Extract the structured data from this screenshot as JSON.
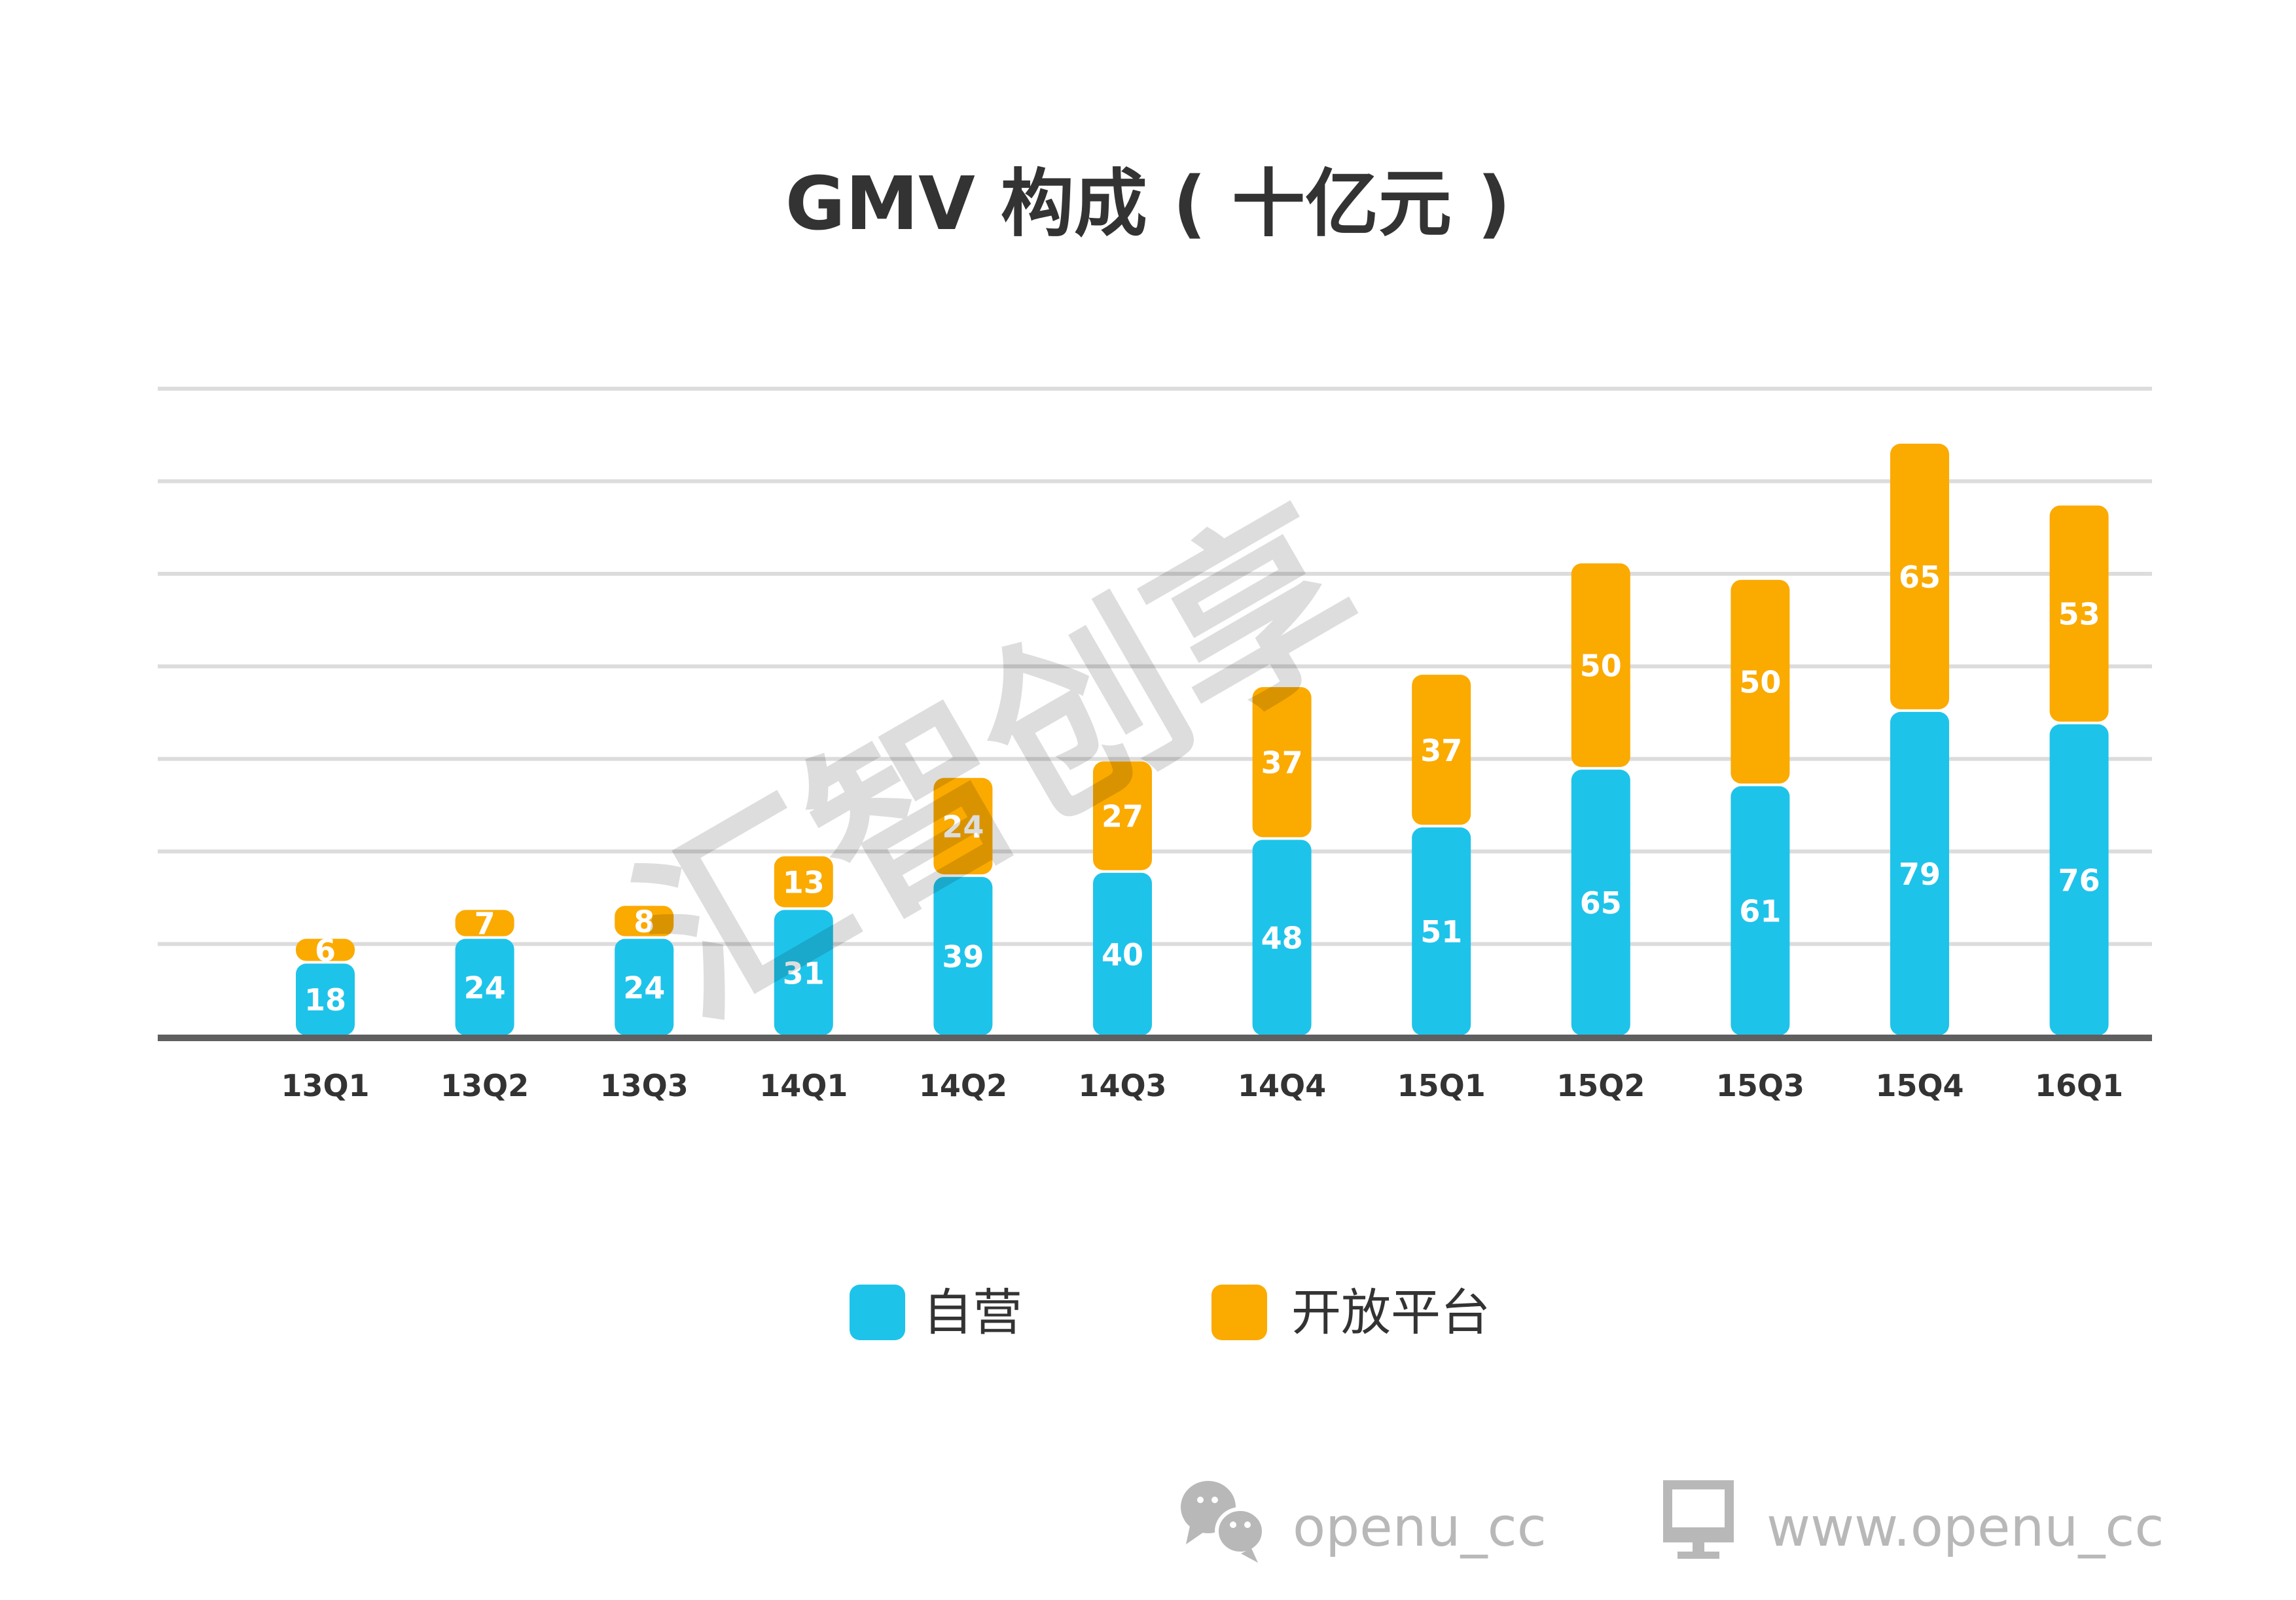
{
  "chart_data": {
    "type": "bar",
    "stacked": true,
    "title": "GMV 构成 ( 十亿元 )",
    "xlabel": "",
    "ylabel": "",
    "ylim": [
      0,
      157
    ],
    "grid": true,
    "gridline_count": 7,
    "legend_position": "bottom-center",
    "categories": [
      "13Q1",
      "13Q2",
      "13Q3",
      "14Q1",
      "14Q2",
      "14Q3",
      "14Q4",
      "15Q1",
      "15Q2",
      "15Q3",
      "15Q4",
      "16Q1"
    ],
    "series": [
      {
        "name": "自营",
        "color": "#1EC3EA",
        "values": [
          18,
          24,
          24,
          31,
          39,
          40,
          48,
          51,
          65,
          61,
          79,
          76
        ]
      },
      {
        "name": "开放平台",
        "color": "#FBAA00",
        "values": [
          6,
          7,
          8,
          13,
          24,
          27,
          37,
          37,
          50,
          50,
          65,
          53
        ]
      }
    ]
  },
  "watermark": "汇智创享",
  "footer": {
    "wechat_icon": "wechat-icon",
    "wechat_text": "openu_cc",
    "monitor_icon": "monitor-icon",
    "website_text": "www.openu_cc"
  }
}
